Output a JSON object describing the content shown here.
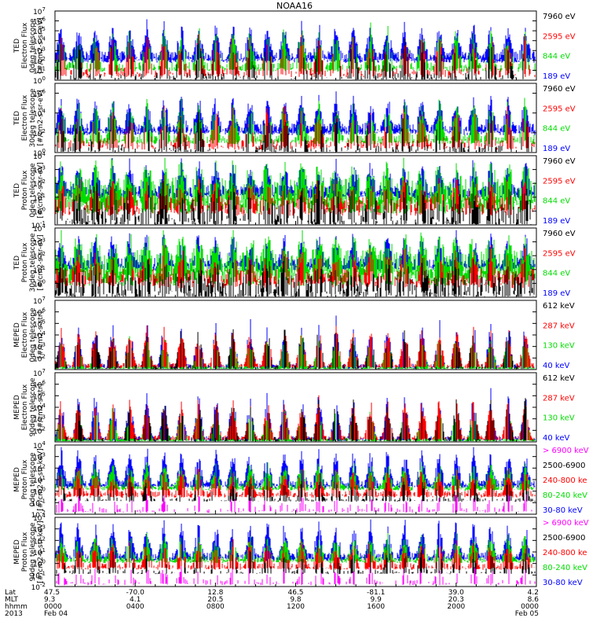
{
  "chart_data": {
    "type": "line",
    "title": "NOAA16",
    "panels": [
      {
        "ylabel": [
          "TED",
          "Electron Flux",
          "0deg telescope",
          "[#/cm2-s-sr-eV]"
        ],
        "y_exp_min": 0,
        "y_exp_max": 7,
        "ticks": [
          {
            "base": "10",
            "exp": "7"
          },
          {
            "base": "10",
            "exp": "6"
          },
          {
            "base": "10",
            "exp": "5"
          },
          {
            "base": "10",
            "exp": "4"
          },
          {
            "base": "10",
            "exp": "3"
          },
          {
            "base": "10",
            "exp": "2"
          },
          {
            "base": "10",
            "exp": "1"
          },
          {
            "base": "10",
            "exp": "0"
          }
        ],
        "series": [
          {
            "name": "7960 eV",
            "color": "#000000"
          },
          {
            "name": "2595 eV",
            "color": "#ff0000"
          },
          {
            "name": "844 eV",
            "color": "#00dd00"
          },
          {
            "name": "189 eV",
            "color": "#0000ff"
          }
        ]
      },
      {
        "ylabel": [
          "TED",
          "Electron Flux",
          "30deg telescope",
          "[#/cm2-s-sr-eV]"
        ],
        "y_exp_min": 0,
        "y_exp_max": 7,
        "ticks": [
          {
            "base": "10",
            "exp": "6"
          },
          {
            "base": "10",
            "exp": "4"
          },
          {
            "base": "10",
            "exp": "2"
          },
          {
            "base": "10",
            "exp": "0"
          }
        ],
        "series": [
          {
            "name": "7960 eV",
            "color": "#000000"
          },
          {
            "name": "2595 eV",
            "color": "#ff0000"
          },
          {
            "name": "844 eV",
            "color": "#00dd00"
          },
          {
            "name": "189 eV",
            "color": "#0000ff"
          }
        ]
      },
      {
        "ylabel": [
          "TED",
          "Proton Flux",
          "0deg telescope",
          "[#/cm2-s-sr-eV]"
        ],
        "y_exp_min": -1,
        "y_exp_max": 4,
        "ticks": [
          {
            "base": "10",
            "exp": "4"
          },
          {
            "base": "10",
            "exp": "3"
          },
          {
            "base": "10",
            "exp": "2"
          },
          {
            "base": "10",
            "exp": "1"
          },
          {
            "base": "10",
            "exp": "0"
          },
          {
            "base": "10",
            "exp": "-1"
          }
        ],
        "series": [
          {
            "name": "7960 eV",
            "color": "#000000"
          },
          {
            "name": "2595 eV",
            "color": "#ff0000"
          },
          {
            "name": "844 eV",
            "color": "#00dd00"
          },
          {
            "name": "189 eV",
            "color": "#0000ff"
          }
        ]
      },
      {
        "ylabel": [
          "TED",
          "Proton Flux",
          "30deg telescope",
          "[#/cm2-s-sr-eV]"
        ],
        "y_exp_min": -1,
        "y_exp_max": 4,
        "ticks": [
          {
            "base": "10",
            "exp": "4"
          },
          {
            "base": "10",
            "exp": "3"
          },
          {
            "base": "10",
            "exp": "2"
          },
          {
            "base": "10",
            "exp": "1"
          },
          {
            "base": "10",
            "exp": "0"
          }
        ],
        "series": [
          {
            "name": "7960 eV",
            "color": "#000000"
          },
          {
            "name": "2595 eV",
            "color": "#ff0000"
          },
          {
            "name": "844 eV",
            "color": "#00dd00"
          },
          {
            "name": "189 eV",
            "color": "#0000ff"
          }
        ]
      },
      {
        "ylabel": [
          "MEPED",
          "Electron Flux",
          "0deg telescope",
          "[#/cm2-s-str]"
        ],
        "y_exp_min": 1,
        "y_exp_max": 7,
        "ticks": [
          {
            "base": "10",
            "exp": "7"
          },
          {
            "base": "10",
            "exp": "6"
          },
          {
            "base": "10",
            "exp": "5"
          },
          {
            "base": "10",
            "exp": "4"
          },
          {
            "base": "10",
            "exp": "3"
          },
          {
            "base": "10",
            "exp": "2"
          }
        ],
        "series": [
          {
            "name": "612 keV",
            "color": "#000000"
          },
          {
            "name": "287 keV",
            "color": "#ff0000"
          },
          {
            "name": "130 keV",
            "color": "#00dd00"
          },
          {
            "name": "40 keV",
            "color": "#0000ff"
          }
        ]
      },
      {
        "ylabel": [
          "MEPED",
          "Electron Flux",
          "90deg telescope",
          "[#/cm2-s-str]"
        ],
        "y_exp_min": 1,
        "y_exp_max": 7,
        "ticks": [
          {
            "base": "10",
            "exp": "7"
          },
          {
            "base": "10",
            "exp": "6"
          },
          {
            "base": "10",
            "exp": "5"
          },
          {
            "base": "10",
            "exp": "4"
          },
          {
            "base": "10",
            "exp": "3"
          },
          {
            "base": "10",
            "exp": "2"
          }
        ],
        "series": [
          {
            "name": "612 keV",
            "color": "#000000"
          },
          {
            "name": "287 keV",
            "color": "#ff0000"
          },
          {
            "name": "130 keV",
            "color": "#00dd00"
          },
          {
            "name": "40 keV",
            "color": "#0000ff"
          }
        ]
      },
      {
        "ylabel": [
          "MEPED",
          "Proton Flux",
          "0deg telescope",
          "[#/cm2-s-str-keV]"
        ],
        "y_exp_min": -2,
        "y_exp_max": 4,
        "ticks": [
          {
            "base": "10",
            "exp": "4"
          },
          {
            "base": "10",
            "exp": "3"
          },
          {
            "base": "10",
            "exp": "2"
          },
          {
            "base": "10",
            "exp": "1"
          },
          {
            "base": "10",
            "exp": "0"
          },
          {
            "base": "10",
            "exp": "-1"
          },
          {
            "base": "10",
            "exp": "-2"
          }
        ],
        "series": [
          {
            "name": "> 6900 keV",
            "color": "#ff00ff"
          },
          {
            "name": "2500-6900",
            "color": "#000000"
          },
          {
            "name": "240-800 ke",
            "color": "#ff0000"
          },
          {
            "name": "80-240 keV",
            "color": "#00dd00"
          },
          {
            "name": "30-80 keV",
            "color": "#0000ff"
          }
        ]
      },
      {
        "ylabel": [
          "MEPED",
          "Proton Flux",
          "90deg telescope",
          "[#/cm2-s-str-keV]"
        ],
        "y_exp_min": -2,
        "y_exp_max": 4,
        "ticks": [
          {
            "base": "10",
            "exp": "4"
          },
          {
            "base": "10",
            "exp": "3"
          },
          {
            "base": "10",
            "exp": "2"
          },
          {
            "base": "10",
            "exp": "1"
          },
          {
            "base": "10",
            "exp": "0"
          },
          {
            "base": "10",
            "exp": "-1"
          },
          {
            "base": "10",
            "exp": "-2"
          }
        ],
        "series": [
          {
            "name": "> 6900 keV",
            "color": "#ff00ff"
          },
          {
            "name": "2500-6900",
            "color": "#000000"
          },
          {
            "name": "240-800 ke",
            "color": "#ff0000"
          },
          {
            "name": "80-240 keV",
            "color": "#00dd00"
          },
          {
            "name": "30-80 keV",
            "color": "#0000ff"
          }
        ]
      }
    ],
    "x_axis": {
      "row_labels": [
        "Lat",
        "MLT",
        "hhmm",
        "2013"
      ],
      "columns": [
        {
          "lat": "47.5",
          "mlt": "9.3",
          "hhmm": "0000",
          "date": "Feb 04"
        },
        {
          "lat": "-70.0",
          "mlt": "4.1",
          "hhmm": "0400",
          "date": ""
        },
        {
          "lat": "12.8",
          "mlt": "20.5",
          "hhmm": "0800",
          "date": ""
        },
        {
          "lat": "46.5",
          "mlt": "9.8",
          "hhmm": "1200",
          "date": ""
        },
        {
          "lat": "-81.1",
          "mlt": "9.9",
          "hhmm": "1600",
          "date": ""
        },
        {
          "lat": "39.0",
          "mlt": "20.3",
          "hhmm": "2000",
          "date": ""
        },
        {
          "lat": "4.2",
          "mlt": "8.6",
          "hhmm": "0000",
          "date": "Feb 05"
        }
      ]
    }
  }
}
